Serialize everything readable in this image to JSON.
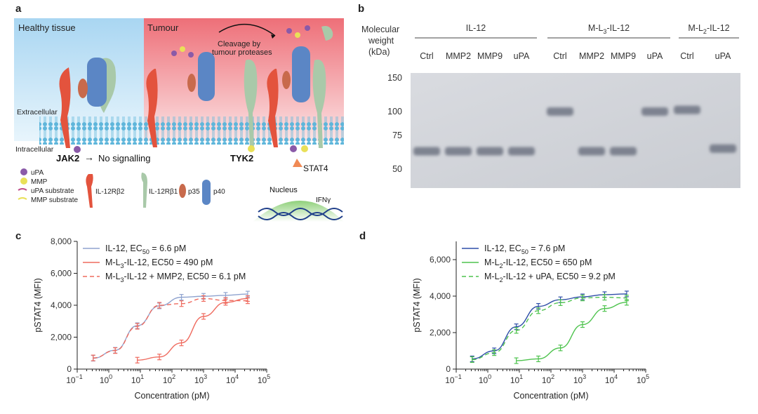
{
  "panels": {
    "a": "a",
    "b": "b",
    "c": "c",
    "d": "d"
  },
  "panel_a": {
    "healthy_title": "Healthy tissue",
    "tumour_title": "Tumour",
    "cleavage_line1": "Cleavage by",
    "cleavage_line2": "tumour proteases",
    "extracellular": "Extracellular",
    "intracellular": "Intracellular",
    "jak2": "JAK2",
    "no_signalling": "No signalling",
    "tyk2": "TYK2",
    "stat4": "STAT4",
    "nucleus": "Nucleus",
    "ifn": "IFNγ",
    "legend": {
      "upa": "uPA",
      "mmp": "MMP",
      "upa_substrate": "uPA substrate",
      "mmp_substrate": "MMP substrate",
      "il12rb2": "IL-12Rβ2",
      "il12rb1": "IL-12Rβ1",
      "p35": "p35",
      "p40": "p40"
    }
  },
  "panel_b": {
    "mw_line1": "Molecular",
    "mw_line2": "weight",
    "mw_line3": "(kDa)",
    "groups": [
      "IL-12",
      "M-L3-IL-12",
      "M-L2-IL-12"
    ],
    "group_main": [
      "IL-12",
      "M-L",
      "M-L"
    ],
    "group_sub": [
      "",
      "3",
      "2"
    ],
    "group_tail": [
      "",
      "-IL-12",
      "-IL-12"
    ],
    "lanes": [
      "Ctrl",
      "MMP2",
      "MMP9",
      "uPA",
      "Ctrl",
      "MMP2",
      "MMP9",
      "uPA",
      "Ctrl",
      "uPA"
    ],
    "markers": [
      "150",
      "100",
      "75",
      "50"
    ],
    "band_kda": [
      62,
      62,
      62,
      62,
      100,
      62,
      62,
      100,
      102,
      64
    ]
  },
  "chart_data": [
    {
      "type": "line",
      "panel": "c",
      "xlabel": "Concentration (pM)",
      "ylabel": "pSTAT4 (MFI)",
      "xscale": "log",
      "xlim": [
        0.1,
        100000
      ],
      "ylim": [
        0,
        8000
      ],
      "yticks": [
        "0",
        "2,000",
        "4,000",
        "6,000",
        "8,000"
      ],
      "xticks_base": [
        "10",
        "10",
        "10",
        "10",
        "10",
        "10",
        "10"
      ],
      "xticks_exp": [
        "−1",
        "0",
        "1",
        "2",
        "3",
        "4",
        "5"
      ],
      "legend_position": "top-left",
      "series": [
        {
          "name": "IL-12, EC50 = 6.6 pM",
          "legend_main": "IL-12, EC",
          "legend_sub": "50",
          "legend_tail": " = 6.6 pM",
          "color": "#8fa3cf",
          "dash": "solid",
          "x": [
            0.32,
            1.6,
            8,
            40,
            200,
            1000,
            5000,
            25000
          ],
          "y": [
            680,
            1180,
            2720,
            3960,
            4500,
            4560,
            4620,
            4700
          ]
        },
        {
          "name": "M-L3-IL-12, EC50 = 490 pM",
          "legend_main": "M-L",
          "legend_sub": "3",
          "legend_tail": "-IL-12, EC50 = 490 pM",
          "color": "#ef6b5f",
          "dash": "solid",
          "x": [
            8,
            40,
            200,
            1000,
            5000,
            25000
          ],
          "y": [
            560,
            760,
            1640,
            3300,
            4180,
            4420
          ]
        },
        {
          "name": "M-L3-IL-12 + MMP2, EC50 = 6.1 pM",
          "legend_main": "M-L",
          "legend_sub": "3",
          "legend_tail": "-IL-12 + MMP2, EC50 = 6.1 pM",
          "color": "#ef6b5f",
          "dash": "dashed",
          "x": [
            0.32,
            1.6,
            8,
            40,
            200,
            1000,
            5000,
            25000
          ],
          "y": [
            700,
            1160,
            2680,
            4000,
            4100,
            4420,
            4300,
            4280
          ]
        }
      ]
    },
    {
      "type": "line",
      "panel": "d",
      "xlabel": "Concentration (pM)",
      "ylabel": "pSTAT4 (MFI)",
      "xscale": "log",
      "xlim": [
        0.1,
        100000
      ],
      "ylim": [
        0,
        7000
      ],
      "yticks": [
        "0",
        "2,000",
        "4,000",
        "6,000"
      ],
      "xticks_base": [
        "10",
        "10",
        "10",
        "10",
        "10",
        "10",
        "10"
      ],
      "xticks_exp": [
        "−1",
        "0",
        "1",
        "2",
        "3",
        "4",
        "5"
      ],
      "legend_position": "top-left",
      "series": [
        {
          "name": "IL-12, EC50 = 7.6 pM",
          "legend_main": "IL-12, EC",
          "legend_sub": "50",
          "legend_tail": " = 7.6 pM",
          "color": "#2f4fa8",
          "dash": "solid",
          "x": [
            0.32,
            1.6,
            8,
            40,
            200,
            1000,
            5000,
            25000
          ],
          "y": [
            560,
            1000,
            2320,
            3440,
            3800,
            3960,
            4080,
            4120
          ]
        },
        {
          "name": "M-L2-IL-12, EC50 = 650 pM",
          "legend_main": "M-L",
          "legend_sub": "2",
          "legend_tail": "-IL-12, EC50 = 650 pM",
          "color": "#4ec34e",
          "dash": "solid",
          "x": [
            8,
            40,
            200,
            1000,
            5000,
            25000
          ],
          "y": [
            460,
            560,
            1160,
            2440,
            3320,
            3660
          ]
        },
        {
          "name": "M-L2-IL-12 + uPA, EC50 = 9.2 pM",
          "legend_main": "M-L",
          "legend_sub": "2",
          "legend_tail": "-IL-12 + uPA, EC50 = 9.2 pM",
          "color": "#4ec34e",
          "dash": "dashed",
          "x": [
            0.32,
            1.6,
            8,
            40,
            200,
            1000,
            5000,
            25000
          ],
          "y": [
            520,
            900,
            2120,
            3200,
            3640,
            3900,
            3940,
            3900
          ]
        }
      ]
    }
  ]
}
